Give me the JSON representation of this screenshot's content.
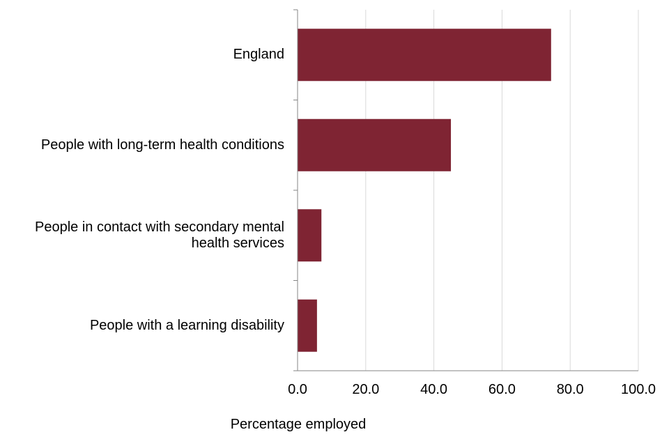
{
  "chart_data": {
    "type": "bar",
    "orientation": "horizontal",
    "categories": [
      "England",
      "People with long-term health conditions",
      "People in contact with secondary mental\nhealth services",
      "People with a learning disability"
    ],
    "values": [
      74.4,
      45.0,
      7.0,
      5.7
    ],
    "xlabel": "Percentage employed",
    "ylabel": "",
    "xlim": [
      0,
      100
    ],
    "xticks": [
      "0.0",
      "20.0",
      "40.0",
      "60.0",
      "80.0",
      "100.0"
    ],
    "grid": "vertical",
    "bar_color": "#7f2433"
  }
}
